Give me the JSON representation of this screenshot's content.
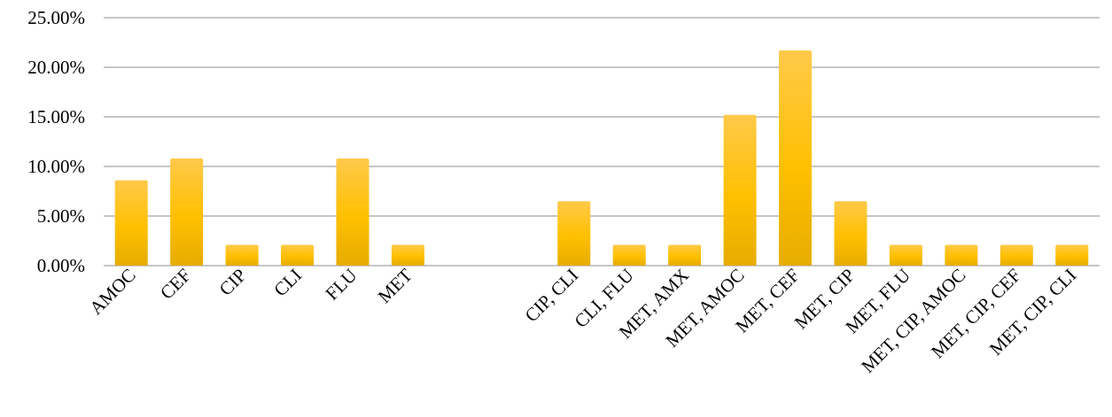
{
  "chart_data": {
    "type": "bar",
    "categories": [
      "AMOC",
      "CEF",
      "CIP",
      "CLI",
      "FLU",
      "MET",
      "",
      "",
      "CIP, CLI",
      "CLI, FLU",
      "MET, AMX",
      "MET, AMOC",
      "MET, CEF",
      "MET, CIP",
      "MET, FLU",
      "MET, CIP, AMOC",
      "MET, CIP, CEF",
      "MET, CIP, CLI"
    ],
    "values": [
      8.6,
      10.8,
      2.1,
      2.1,
      10.8,
      2.1,
      null,
      null,
      6.5,
      2.1,
      2.1,
      15.2,
      21.7,
      6.5,
      2.1,
      2.1,
      2.1,
      2.1
    ],
    "ylim": [
      0,
      25
    ],
    "yticks": [
      0,
      5,
      10,
      15,
      20,
      25
    ],
    "ytick_labels": [
      "0.00%",
      "5.00%",
      "10.00%",
      "15.00%",
      "20.00%",
      "25.00%"
    ],
    "grid": true,
    "colors": {
      "bar_top": "#FFC94A",
      "bar_mid": "#FFC000",
      "bar_bottom": "#E6AC00",
      "grid": "#8c8c8c"
    }
  }
}
